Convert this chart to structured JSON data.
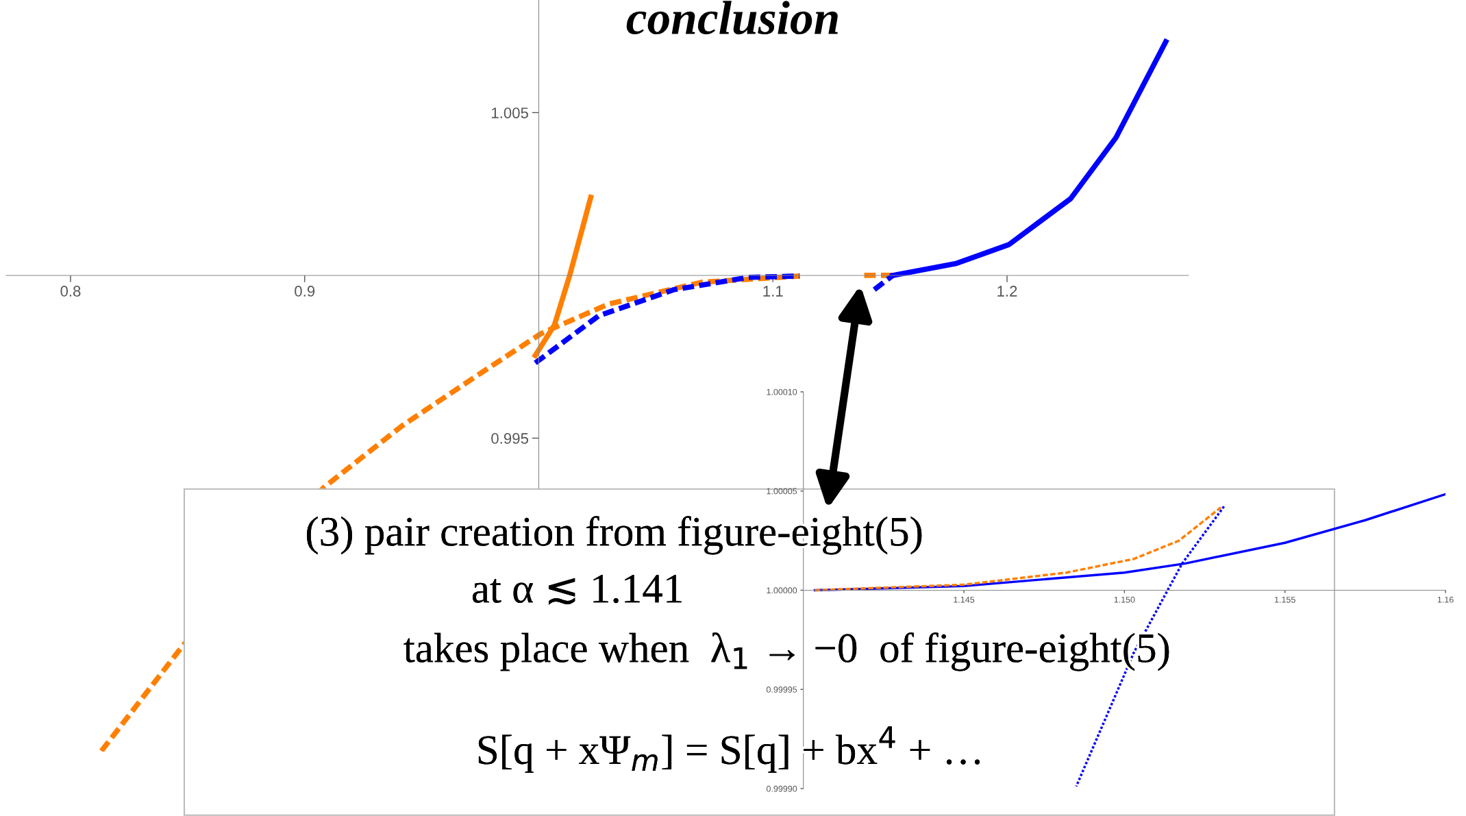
{
  "chart_data": [
    {
      "type": "line",
      "title": "conclusion",
      "xlim": [
        0.7725,
        1.2775
      ],
      "ylim": [
        0.98537,
        1.00846
      ],
      "xticks": [
        0.8,
        0.9,
        1.1,
        1.2
      ],
      "yticks": [
        0.995,
        1.005
      ],
      "grid": false,
      "marker": "none",
      "series": [
        {
          "color": "#ff7f00",
          "line_style": "dashed",
          "x": [
            0.8132,
            0.848,
            0.9079,
            0.9418,
            0.9778,
            1.0009,
            1.0298,
            1.0696,
            1.1114,
            null,
            1.139,
            1.151
          ],
          "values": [
            0.98539,
            0.98863,
            0.99347,
            0.99539,
            0.99712,
            0.99821,
            0.99912,
            0.99979,
            0.99998,
            null,
            1.0,
            1.0
          ]
        },
        {
          "color": "#0000ff",
          "line_style": "dashed",
          "x": [
            0.9985,
            1.0256,
            1.0576,
            1.0895,
            1.1114,
            null,
            1.1433,
            1.1512
          ],
          "values": [
            0.99731,
            0.99876,
            0.99956,
            0.99994,
            0.99998,
            null,
            0.99956,
            1.0
          ]
        },
        {
          "color": "#ff7f00",
          "line_style": "solid",
          "x": [
            0.9985,
            1.0067,
            1.0132,
            1.0222
          ],
          "values": [
            0.99754,
            0.99848,
            1.0,
            1.0024
          ]
        },
        {
          "color": "#0000ff",
          "line_style": "solid",
          "x": [
            1.1512,
            1.178,
            1.2009,
            1.2272,
            1.2465,
            1.2678
          ],
          "values": [
            1.0,
            1.00036,
            1.00095,
            1.00236,
            1.00423,
            1.00718
          ]
        }
      ],
      "annotations": [
        "(3) pair creation from figure-eight(5)",
        "at α ≲ 1.141",
        "takes place when  λ$_{1}$ → −0  of figure-eight(5)",
        "S[q + xΨ$_{m}$] = S[q] + bx$^{4}$ + …"
      ]
    },
    {
      "type": "line",
      "xlim": [
        1.14,
        1.16
      ],
      "ylim": [
        0.9999,
        1.0001
      ],
      "xticks": [
        1.145,
        {
          "value": 1.15,
          "label": "1.150"
        },
        1.155,
        1.16
      ],
      "yticks": [
        {
          "value": 0.9999,
          "label": "0.99990"
        },
        0.99995,
        {
          "value": 1.0,
          "label": "1.00000"
        },
        1.00005,
        {
          "value": 1.0001,
          "label": "1.00010"
        }
      ],
      "grid": false,
      "marker": "none",
      "series": [
        {
          "color": "#0000ff",
          "line_style": "solid",
          "x": [
            1.14036,
            1.145,
            1.15,
            1.1519,
            1.155,
            1.1575,
            1.16
          ],
          "values": [
            1.0,
            1.0000021,
            1.0000089,
            1.0000135,
            1.0000239,
            1.0000353,
            1.0000484
          ]
        },
        {
          "color": "#ff7f00",
          "line_style": "dashed",
          "x": [
            1.14036,
            1.145,
            1.1482,
            1.1503,
            1.1517,
            1.153
          ],
          "values": [
            1.0,
            1.0000028,
            1.0000089,
            1.0000158,
            1.000025,
            1.0000417
          ]
        },
        {
          "color": "#0000ff",
          "line_style": "dotted",
          "x": [
            1.1531,
            1.1518,
            1.1503,
            1.1485
          ],
          "values": [
            1.0000422,
            1.0000135,
            0.9999688,
            0.9999011
          ]
        }
      ]
    }
  ]
}
